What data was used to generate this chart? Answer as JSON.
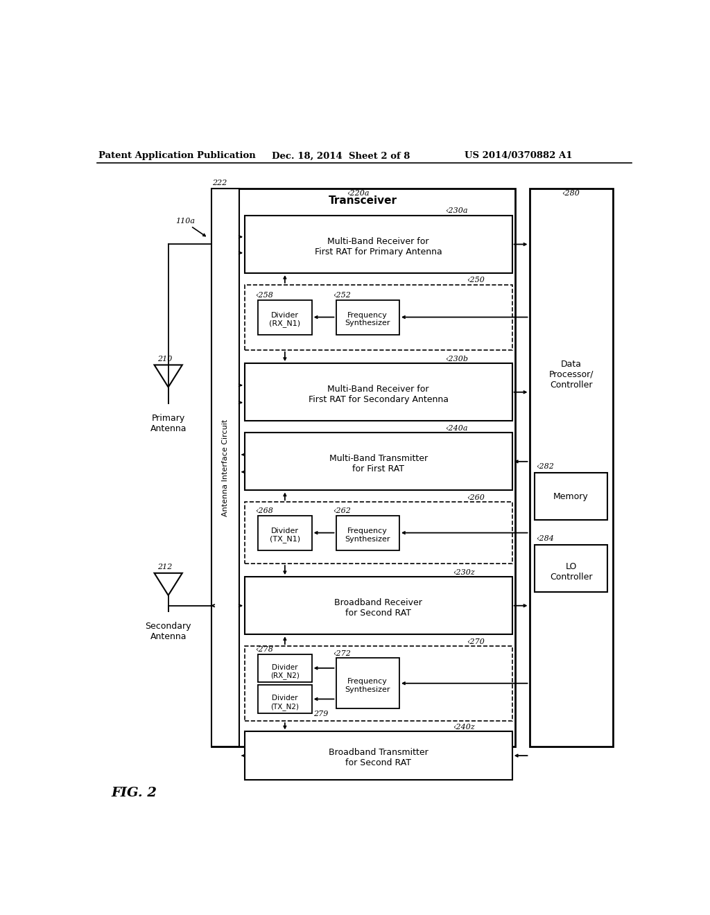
{
  "bg_color": "#ffffff",
  "header_text": "Patent Application Publication",
  "header_date": "Dec. 18, 2014  Sheet 2 of 8",
  "header_patent": "US 2014/0370882 A1",
  "fig_label": "FIG. 2"
}
